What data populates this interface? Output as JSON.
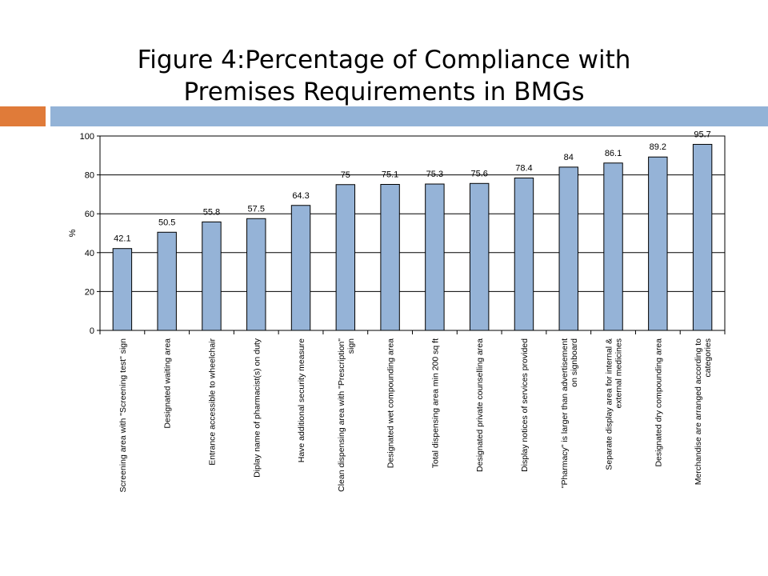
{
  "slide": {
    "title_line1": "Figure 4:Percentage of Compliance with",
    "title_line2": "Premises Requirements in BMGs"
  },
  "colors": {
    "accent_orange": "#E07B39",
    "accent_blue": "#93B3D7",
    "bar_fill": "#95B3D7",
    "bar_stroke": "#000000"
  },
  "chart_data": {
    "type": "bar",
    "title": "",
    "xlabel": "",
    "ylabel": "%",
    "ylim": [
      0,
      100
    ],
    "yticks": [
      0,
      20,
      40,
      60,
      80,
      100
    ],
    "grid": true,
    "categories": [
      [
        "Screening area with \"Screening test\" sign"
      ],
      [
        "Designated waiting area"
      ],
      [
        "Entrance accessible to wheelchair"
      ],
      [
        "Diplay name of pharmacist(s) on duty"
      ],
      [
        "Have additional security measure"
      ],
      [
        "Clean dispensing area with \"Prescription\"",
        "sign"
      ],
      [
        "Designated wet compounding area"
      ],
      [
        "Total dispensing area min 200 sq ft"
      ],
      [
        "Designated private counselling area"
      ],
      [
        "Display notices of services provided"
      ],
      [
        "\"Pharmacy\" is larger than advertisement",
        "on signboard"
      ],
      [
        "Separate display area for internal &",
        "external medicines"
      ],
      [
        "Designated dry compounding area"
      ],
      [
        "Merchandise are arranged according to",
        "categories"
      ]
    ],
    "values": [
      42.1,
      50.5,
      55.8,
      57.5,
      64.3,
      75,
      75.1,
      75.3,
      75.6,
      78.4,
      84,
      86.1,
      89.2,
      95.7
    ]
  }
}
